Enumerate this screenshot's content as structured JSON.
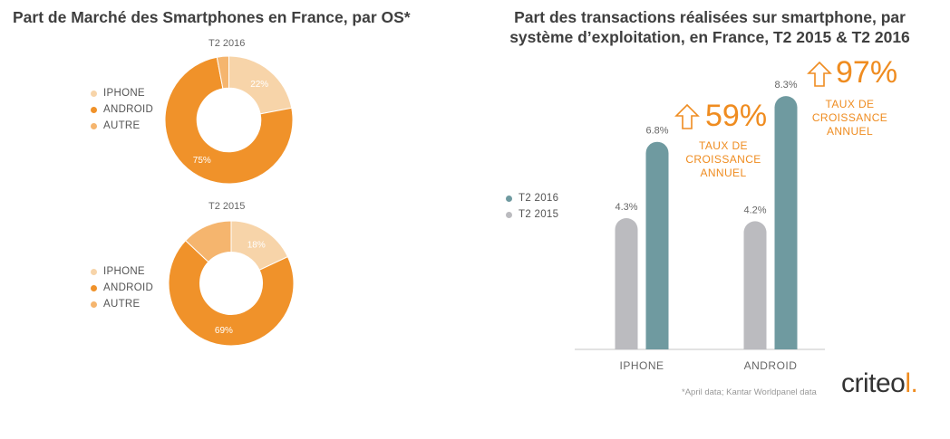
{
  "left_title": "Part de Marché des Smartphones en France, par OS*",
  "right_title_line1": "Part des transactions réalisées sur smartphone, par",
  "right_title_line2": "système d’exploitation, en France, T2 2015 & T2 2016",
  "colors": {
    "iphone": "#f7d4a9",
    "android": "#f0922a",
    "autre": "#f5b56e",
    "t2016": "#6f9aa0",
    "t2015": "#bbbbbf",
    "accent": "#ef8c20"
  },
  "chart_data": [
    {
      "type": "pie",
      "title": "T2 2016",
      "categories": [
        "IPHONE",
        "ANDROID",
        "AUTRE"
      ],
      "values": [
        22,
        75,
        3
      ],
      "value_labels": [
        "22%",
        "75%",
        ""
      ],
      "legend": [
        "IPHONE",
        "ANDROID",
        "AUTRE"
      ]
    },
    {
      "type": "pie",
      "title": "T2 2015",
      "categories": [
        "IPHONE",
        "ANDROID",
        "AUTRE"
      ],
      "values": [
        18,
        69,
        13
      ],
      "value_labels": [
        "18%",
        "69%",
        ""
      ],
      "legend": [
        "IPHONE",
        "ANDROID",
        "AUTRE"
      ]
    },
    {
      "type": "bar",
      "categories": [
        "IPHONE",
        "ANDROID"
      ],
      "series": [
        {
          "name": "T2 2015",
          "values": [
            4.3,
            4.2
          ],
          "labels": [
            "4.3%",
            "4.2%"
          ]
        },
        {
          "name": "T2 2016",
          "values": [
            6.8,
            8.3
          ],
          "labels": [
            "6.8%",
            "8.3%"
          ]
        }
      ],
      "ylim": [
        0,
        8.6
      ],
      "legend": [
        "T2 2016",
        "T2 2015"
      ],
      "growth": [
        {
          "value": "59%",
          "text_line1": "TAUX DE",
          "text_line2": "CROISSANCE",
          "text_line3": "ANNUEL"
        },
        {
          "value": "97%",
          "text_line1": "TAUX DE",
          "text_line2": "CROISSANCE",
          "text_line3": "ANNUEL"
        }
      ]
    }
  ],
  "footnote": "*April data; Kantar Worldpanel data",
  "logo": {
    "word": "criteo",
    "mark": "l."
  }
}
